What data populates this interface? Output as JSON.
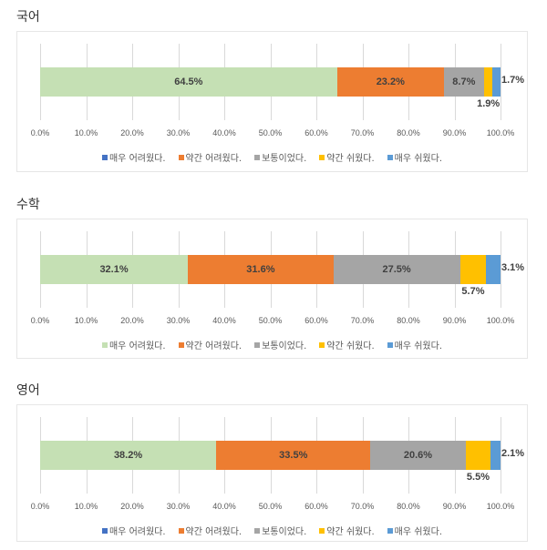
{
  "legend_labels": [
    "매우 어려웠다.",
    "약간 어려웠다.",
    "보통이었다.",
    "약간 쉬웠다.",
    "매우 쉬웠다."
  ],
  "colors": {
    "very_hard_bar": "#C5E0B4",
    "very_hard_legend_blue": "#4472C4",
    "somewhat_hard": "#ED7D31",
    "neutral": "#A5A5A5",
    "somewhat_easy": "#FFC000",
    "very_easy": "#5B9BD5"
  },
  "axis_ticks": [
    "0.0%",
    "10.0%",
    "20.0%",
    "30.0%",
    "40.0%",
    "50.0%",
    "60.0%",
    "70.0%",
    "80.0%",
    "90.0%",
    "100.0%"
  ],
  "charts": [
    {
      "title": "국어",
      "labels": [
        "64.5%",
        "23.2%",
        "8.7%",
        "1.9%",
        "1.7%"
      ],
      "legend_first_swatch": "#4472C4"
    },
    {
      "title": "수학",
      "labels": [
        "32.1%",
        "31.6%",
        "27.5%",
        "5.7%",
        "3.1%"
      ],
      "legend_first_swatch": "#C5E0B4"
    },
    {
      "title": "영어",
      "labels": [
        "38.2%",
        "33.5%",
        "20.6%",
        "5.5%",
        "2.1%"
      ],
      "legend_first_swatch": "#4472C4"
    }
  ],
  "chart_data": [
    {
      "type": "bar",
      "orientation": "horizontal-stacked-100",
      "title": "국어",
      "categories": [
        ""
      ],
      "series": [
        {
          "name": "매우 어려웠다.",
          "values": [
            64.5
          ]
        },
        {
          "name": "약간 어려웠다.",
          "values": [
            23.2
          ]
        },
        {
          "name": "보통이었다.",
          "values": [
            8.7
          ]
        },
        {
          "name": "약간 쉬웠다.",
          "values": [
            1.9
          ]
        },
        {
          "name": "매우 쉬웠다.",
          "values": [
            1.7
          ]
        }
      ],
      "xlabel": "",
      "ylabel": "",
      "xlim": [
        0,
        100
      ],
      "xticks": [
        "0.0%",
        "10.0%",
        "20.0%",
        "30.0%",
        "40.0%",
        "50.0%",
        "60.0%",
        "70.0%",
        "80.0%",
        "90.0%",
        "100.0%"
      ],
      "grid": true,
      "legend_position": "bottom"
    },
    {
      "type": "bar",
      "orientation": "horizontal-stacked-100",
      "title": "수학",
      "categories": [
        ""
      ],
      "series": [
        {
          "name": "매우 어려웠다.",
          "values": [
            32.1
          ]
        },
        {
          "name": "약간 어려웠다.",
          "values": [
            31.6
          ]
        },
        {
          "name": "보통이었다.",
          "values": [
            27.5
          ]
        },
        {
          "name": "약간 쉬웠다.",
          "values": [
            5.7
          ]
        },
        {
          "name": "매우 쉬웠다.",
          "values": [
            3.1
          ]
        }
      ],
      "xlabel": "",
      "ylabel": "",
      "xlim": [
        0,
        100
      ],
      "xticks": [
        "0.0%",
        "10.0%",
        "20.0%",
        "30.0%",
        "40.0%",
        "50.0%",
        "60.0%",
        "70.0%",
        "80.0%",
        "90.0%",
        "100.0%"
      ],
      "grid": true,
      "legend_position": "bottom"
    },
    {
      "type": "bar",
      "orientation": "horizontal-stacked-100",
      "title": "영어",
      "categories": [
        ""
      ],
      "series": [
        {
          "name": "매우 어려웠다.",
          "values": [
            38.2
          ]
        },
        {
          "name": "약간 어려웠다.",
          "values": [
            33.5
          ]
        },
        {
          "name": "보통이었다.",
          "values": [
            20.6
          ]
        },
        {
          "name": "약간 쉬웠다.",
          "values": [
            5.5
          ]
        },
        {
          "name": "매우 쉬웠다.",
          "values": [
            2.1
          ]
        }
      ],
      "xlabel": "",
      "ylabel": "",
      "xlim": [
        0,
        100
      ],
      "xticks": [
        "0.0%",
        "10.0%",
        "20.0%",
        "30.0%",
        "40.0%",
        "50.0%",
        "60.0%",
        "70.0%",
        "80.0%",
        "90.0%",
        "100.0%"
      ],
      "grid": true,
      "legend_position": "bottom"
    }
  ]
}
